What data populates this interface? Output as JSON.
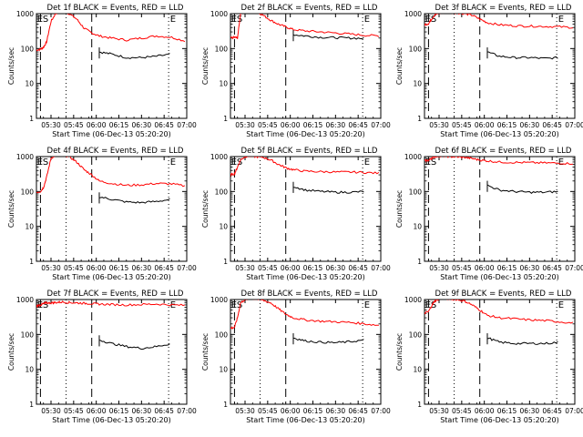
{
  "colors": {
    "events": "#000000",
    "lld": "#ff0000",
    "axis": "#000000",
    "background": "#ffffff"
  },
  "chart_data": [
    {
      "type": "line",
      "title": "Det 1f BLACK = Events, RED = LLD",
      "xlabel": "Start Time (06-Dec-13 05:20:20)",
      "ylabel": "Counts/sec",
      "x_ticks": [
        "05:30",
        "05:45",
        "06:00",
        "06:15",
        "06:30",
        "06:45",
        "07:00"
      ],
      "y_ticks": [
        "1",
        "10",
        "100",
        "1000"
      ],
      "markers": [
        "E",
        "S",
        "E"
      ],
      "series": [
        {
          "x": [
            "05:20",
            "05:23",
            "05:25",
            "05:27",
            "05:30",
            "05:33",
            "05:37",
            "05:42",
            "05:47",
            "05:52",
            "05:57",
            "06:02",
            "06:10",
            "06:20",
            "06:30",
            "06:40",
            "06:50",
            "07:00"
          ],
          "values": [
            90,
            95,
            110,
            150,
            600,
            1000,
            1200,
            1000,
            700,
            380,
            280,
            230,
            200,
            175,
            200,
            230,
            210,
            160
          ],
          "events": [
            null,
            null,
            null,
            null,
            null,
            null,
            null,
            null,
            null,
            null,
            null,
            80,
            70,
            55,
            55,
            60,
            70,
            null
          ]
        }
      ]
    },
    {
      "type": "line",
      "title": "Det 2f BLACK = Events, RED = LLD",
      "xlabel": "Start Time (06-Dec-13 05:20:20)",
      "ylabel": "Counts/sec",
      "x_ticks": [
        "05:30",
        "05:45",
        "06:00",
        "06:15",
        "06:30",
        "06:45",
        "07:00"
      ],
      "y_ticks": [
        "1",
        "10",
        "100",
        "1000"
      ],
      "markers": [
        "E",
        "S",
        "E"
      ],
      "series": [
        {
          "x": [
            "05:20",
            "05:23",
            "05:25",
            "05:27",
            "05:30",
            "05:33",
            "05:37",
            "05:42",
            "05:47",
            "05:52",
            "05:57",
            "06:02",
            "06:10",
            "06:20",
            "06:30",
            "06:40",
            "06:50",
            "07:00"
          ],
          "values": [
            200,
            210,
            200,
            1000,
            1500,
            1400,
            1200,
            900,
            650,
            500,
            420,
            350,
            320,
            300,
            280,
            260,
            240,
            230
          ],
          "events": [
            null,
            null,
            null,
            null,
            null,
            null,
            null,
            null,
            null,
            null,
            null,
            250,
            230,
            210,
            205,
            200,
            195,
            null
          ]
        }
      ]
    },
    {
      "type": "line",
      "title": "Det 3f BLACK = Events, RED = LLD",
      "xlabel": "Start Time (06-Dec-13 05:20:20)",
      "ylabel": "Counts/sec",
      "x_ticks": [
        "05:30",
        "05:45",
        "06:00",
        "06:15",
        "06:30",
        "06:45",
        "07:00"
      ],
      "y_ticks": [
        "1",
        "10",
        "100",
        "1000"
      ],
      "markers": [
        "E",
        "S",
        "E"
      ],
      "series": [
        {
          "x": [
            "05:20",
            "05:23",
            "05:25",
            "05:27",
            "05:30",
            "05:33",
            "05:37",
            "05:42",
            "05:47",
            "05:52",
            "05:57",
            "06:02",
            "06:10",
            "06:20",
            "06:30",
            "06:40",
            "06:50",
            "07:00"
          ],
          "values": [
            480,
            520,
            700,
            900,
            1050,
            1100,
            1100,
            1050,
            1000,
            900,
            700,
            550,
            480,
            450,
            440,
            430,
            420,
            400
          ],
          "events": [
            null,
            null,
            null,
            null,
            null,
            null,
            null,
            null,
            null,
            null,
            null,
            80,
            60,
            55,
            55,
            52,
            55,
            null
          ]
        }
      ]
    },
    {
      "type": "line",
      "title": "Det 4f BLACK = Events, RED = LLD",
      "xlabel": "Start Time (06-Dec-13 05:20:20)",
      "ylabel": "Counts/sec",
      "x_ticks": [
        "05:30",
        "05:45",
        "06:00",
        "06:15",
        "06:30",
        "06:45",
        "07:00"
      ],
      "y_ticks": [
        "1",
        "10",
        "100",
        "1000"
      ],
      "markers": [
        "E",
        "S",
        "E"
      ],
      "series": [
        {
          "x": [
            "05:20",
            "05:23",
            "05:25",
            "05:27",
            "05:30",
            "05:33",
            "05:37",
            "05:42",
            "05:47",
            "05:52",
            "05:57",
            "06:02",
            "06:10",
            "06:20",
            "06:30",
            "06:40",
            "06:50",
            "07:00"
          ],
          "values": [
            95,
            100,
            130,
            250,
            900,
            1100,
            1200,
            1000,
            700,
            420,
            300,
            200,
            170,
            150,
            155,
            170,
            165,
            140
          ],
          "events": [
            null,
            null,
            null,
            null,
            null,
            null,
            null,
            null,
            null,
            null,
            null,
            70,
            60,
            50,
            48,
            52,
            60,
            null
          ]
        }
      ]
    },
    {
      "type": "line",
      "title": "Det 5f BLACK = Events, RED = LLD",
      "xlabel": "Start Time (06-Dec-13 05:20:20)",
      "ylabel": "Counts/sec",
      "x_ticks": [
        "05:30",
        "05:45",
        "06:00",
        "06:15",
        "06:30",
        "06:45",
        "07:00"
      ],
      "y_ticks": [
        "1",
        "10",
        "100",
        "1000"
      ],
      "markers": [
        "E",
        "S",
        "E"
      ],
      "series": [
        {
          "x": [
            "05:20",
            "05:23",
            "05:25",
            "05:27",
            "05:30",
            "05:33",
            "05:37",
            "05:42",
            "05:47",
            "05:52",
            "05:57",
            "06:02",
            "06:10",
            "06:20",
            "06:30",
            "06:40",
            "06:50",
            "07:00"
          ],
          "values": [
            300,
            320,
            500,
            800,
            1000,
            1050,
            1000,
            950,
            800,
            600,
            480,
            420,
            380,
            370,
            360,
            360,
            350,
            330
          ],
          "events": [
            null,
            null,
            null,
            null,
            null,
            null,
            null,
            null,
            null,
            null,
            null,
            140,
            110,
            100,
            95,
            95,
            100,
            null
          ]
        }
      ]
    },
    {
      "type": "line",
      "title": "Det 6f BLACK = Events, RED = LLD",
      "xlabel": "Start Time (06-Dec-13 05:20:20)",
      "ylabel": "Counts/sec",
      "x_ticks": [
        "05:30",
        "05:45",
        "06:00",
        "06:15",
        "06:30",
        "06:45",
        "07:00"
      ],
      "y_ticks": [
        "1",
        "10",
        "100",
        "1000"
      ],
      "markers": [
        "E",
        "S",
        "E"
      ],
      "series": [
        {
          "x": [
            "05:20",
            "05:23",
            "05:25",
            "05:27",
            "05:30",
            "05:33",
            "05:37",
            "05:42",
            "05:47",
            "05:52",
            "05:57",
            "06:02",
            "06:10",
            "06:20",
            "06:30",
            "06:40",
            "06:50",
            "07:00"
          ],
          "values": [
            750,
            780,
            900,
            1000,
            1050,
            1050,
            1000,
            980,
            950,
            880,
            800,
            750,
            700,
            680,
            670,
            660,
            650,
            630
          ],
          "events": [
            null,
            null,
            null,
            null,
            null,
            null,
            null,
            null,
            null,
            null,
            null,
            150,
            110,
            100,
            95,
            95,
            100,
            null
          ]
        }
      ]
    },
    {
      "type": "line",
      "title": "Det 7f BLACK = Events, RED = LLD",
      "xlabel": "Start Time (06-Dec-13 05:20:20)",
      "ylabel": "Counts/sec",
      "x_ticks": [
        "05:30",
        "05:45",
        "06:00",
        "06:15",
        "06:30",
        "06:45",
        "07:00"
      ],
      "y_ticks": [
        "1",
        "10",
        "100",
        "1000"
      ],
      "markers": [
        "E",
        "S",
        "E"
      ],
      "series": [
        {
          "x": [
            "05:20",
            "05:23",
            "05:25",
            "05:27",
            "05:30",
            "05:33",
            "05:37",
            "05:42",
            "05:47",
            "05:52",
            "05:57",
            "06:02",
            "06:10",
            "06:20",
            "06:30",
            "06:40",
            "06:50",
            "07:00"
          ],
          "values": [
            650,
            700,
            750,
            800,
            800,
            820,
            850,
            820,
            800,
            780,
            760,
            740,
            720,
            700,
            720,
            740,
            700,
            680
          ],
          "events": [
            null,
            null,
            null,
            null,
            null,
            null,
            null,
            null,
            null,
            null,
            null,
            70,
            55,
            45,
            40,
            45,
            55,
            null
          ]
        }
      ]
    },
    {
      "type": "line",
      "title": "Det 8f BLACK = Events, RED = LLD",
      "xlabel": "Start Time (06-Dec-13 05:20:20)",
      "ylabel": "Counts/sec",
      "x_ticks": [
        "05:30",
        "05:45",
        "06:00",
        "06:15",
        "06:30",
        "06:45",
        "07:00"
      ],
      "y_ticks": [
        "1",
        "10",
        "100",
        "1000"
      ],
      "markers": [
        "E",
        "S",
        "E"
      ],
      "series": [
        {
          "x": [
            "05:20",
            "05:23",
            "05:25",
            "05:27",
            "05:30",
            "05:33",
            "05:37",
            "05:42",
            "05:47",
            "05:52",
            "05:57",
            "06:02",
            "06:10",
            "06:20",
            "06:30",
            "06:40",
            "06:50",
            "07:00"
          ],
          "values": [
            150,
            160,
            300,
            800,
            1000,
            1100,
            1050,
            950,
            800,
            550,
            380,
            300,
            260,
            240,
            230,
            220,
            200,
            180
          ],
          "events": [
            null,
            null,
            null,
            null,
            null,
            null,
            null,
            null,
            null,
            null,
            null,
            80,
            65,
            60,
            58,
            62,
            70,
            null
          ]
        }
      ]
    },
    {
      "type": "line",
      "title": "Det 9f BLACK = Events, RED = LLD",
      "xlabel": "Start Time (06-Dec-13 05:20:20)",
      "ylabel": "Counts/sec",
      "x_ticks": [
        "05:30",
        "05:45",
        "06:00",
        "06:15",
        "06:30",
        "06:45",
        "07:00"
      ],
      "y_ticks": [
        "1",
        "10",
        "100",
        "1000"
      ],
      "markers": [
        "E",
        "S",
        "E"
      ],
      "series": [
        {
          "x": [
            "05:20",
            "05:23",
            "05:25",
            "05:27",
            "05:30",
            "05:33",
            "05:37",
            "05:42",
            "05:47",
            "05:52",
            "05:57",
            "06:02",
            "06:10",
            "06:20",
            "06:30",
            "06:40",
            "06:50",
            "07:00"
          ],
          "values": [
            400,
            450,
            650,
            900,
            1050,
            1100,
            1050,
            1000,
            900,
            700,
            500,
            350,
            300,
            280,
            260,
            250,
            230,
            210
          ],
          "events": [
            null,
            null,
            null,
            null,
            null,
            null,
            null,
            null,
            null,
            null,
            null,
            80,
            60,
            55,
            55,
            55,
            60,
            null
          ]
        }
      ]
    }
  ]
}
